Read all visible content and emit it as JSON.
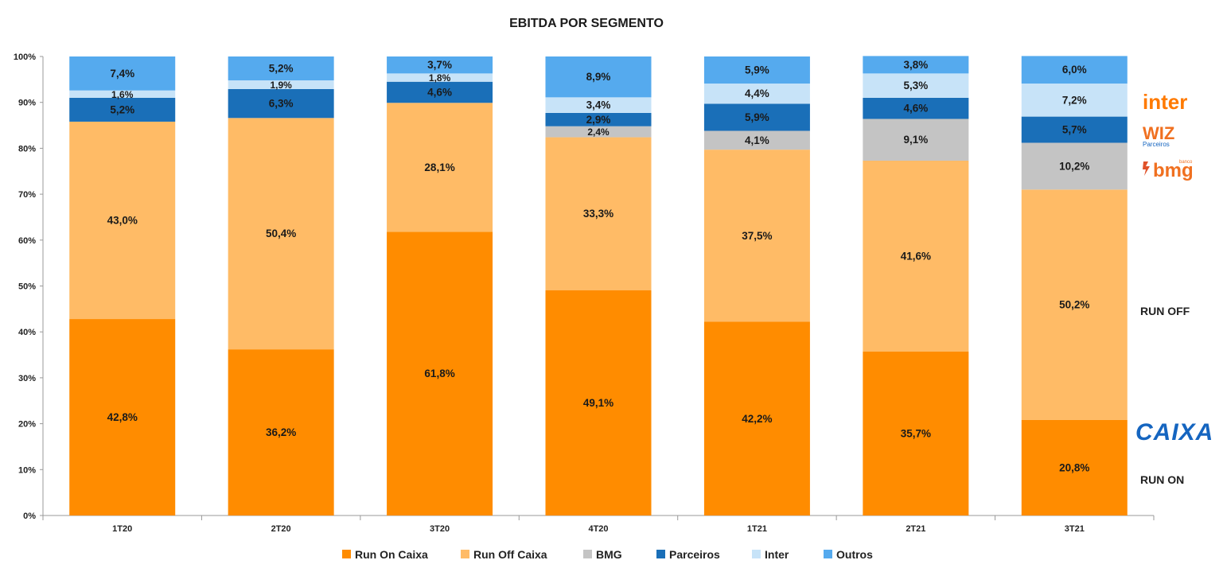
{
  "chart_data": {
    "type": "bar",
    "stacked": true,
    "title": "EBITDA POR SEGMENTO",
    "categories": [
      "1T20",
      "2T20",
      "3T20",
      "4T20",
      "1T21",
      "2T21",
      "3T21"
    ],
    "ylim": [
      0,
      100
    ],
    "yticks": [
      "0%",
      "10%",
      "20%",
      "30%",
      "40%",
      "50%",
      "60%",
      "70%",
      "80%",
      "90%",
      "100%"
    ],
    "grid": false,
    "legend_position": "bottom",
    "series": [
      {
        "name": "Run On Caixa",
        "color": "#ff8c00",
        "values": [
          42.8,
          36.2,
          61.8,
          49.1,
          42.2,
          35.7,
          20.8
        ],
        "labels": [
          "42,8%",
          "36,2%",
          "61,8%",
          "49,1%",
          "42,2%",
          "35,7%",
          "20,8%"
        ]
      },
      {
        "name": "Run Off Caixa",
        "color": "#ffbb66",
        "values": [
          43.0,
          50.4,
          28.1,
          33.3,
          37.5,
          41.6,
          50.2
        ],
        "labels": [
          "43,0%",
          "50,4%",
          "28,1%",
          "33,3%",
          "37,5%",
          "41,6%",
          "50,2%"
        ]
      },
      {
        "name": "BMG",
        "color": "#c4c4c4",
        "values": [
          0,
          0,
          0,
          2.4,
          4.1,
          9.1,
          10.2
        ],
        "labels": [
          "",
          "",
          "",
          "2,4%",
          "4,1%",
          "9,1%",
          "10,2%"
        ]
      },
      {
        "name": "Parceiros",
        "color": "#1a6fb8",
        "values": [
          5.2,
          6.3,
          4.6,
          2.9,
          5.9,
          4.6,
          5.7
        ],
        "labels": [
          "5,2%",
          "6,3%",
          "4,6%",
          "2,9%",
          "5,9%",
          "4,6%",
          "5,7%"
        ]
      },
      {
        "name": "Inter",
        "color": "#c7e3f8",
        "values": [
          1.6,
          1.9,
          1.8,
          3.4,
          4.4,
          5.3,
          7.2
        ],
        "labels": [
          "1,6%",
          "1,9%",
          "1,8%",
          "3,4%",
          "4,4%",
          "5,3%",
          "7,2%"
        ]
      },
      {
        "name": "Outros",
        "color": "#55aaee",
        "values": [
          7.4,
          5.2,
          3.7,
          8.9,
          5.9,
          3.8,
          6.0
        ],
        "labels": [
          "7,4%",
          "5,2%",
          "3,7%",
          "8,9%",
          "5,9%",
          "3,8%",
          "6,0%"
        ]
      }
    ],
    "annotations": {
      "run_off": "RUN OFF",
      "run_on": "RUN ON"
    }
  },
  "logos": {
    "inter": "inter",
    "wiz": "WIZ",
    "wiz_sub": "Parceiros",
    "bmg": "bmg",
    "bmg_sub": "banco",
    "caixa": "CAIXA"
  }
}
